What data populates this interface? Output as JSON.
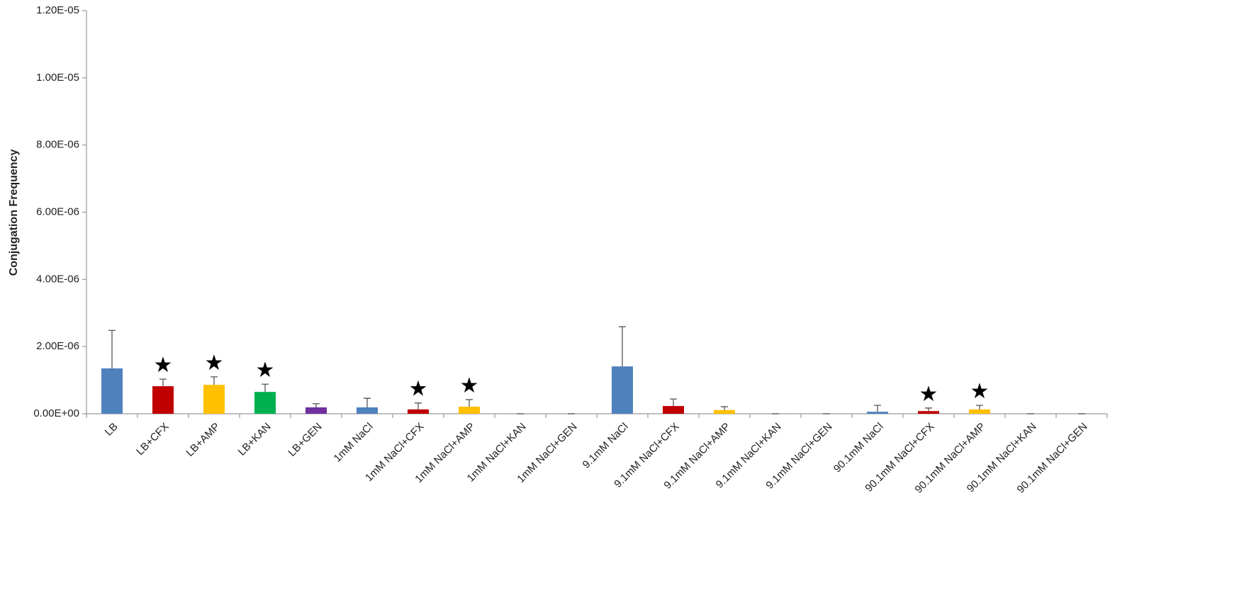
{
  "chart_data": {
    "type": "bar",
    "y_label": "Conjugation Frequency",
    "categories": [
      "LB",
      "LB+CFX",
      "LB+AMP",
      "LB+KAN",
      "LB+GEN",
      "1mM NaCl",
      "1mM NaCl+CFX",
      "1mM NaCl+AMP",
      "1mM NaCl+KAN",
      "1mM NaCl+GEN",
      "9.1mM NaCl",
      "9.1mM NaCl+CFX",
      "9.1mM NaCl+AMP",
      "9.1mM NaCl+KAN",
      "9.1mM NaCl+GEN",
      "90.1mM NaCl",
      "90.1mM NaCl+CFX",
      "90.1mM NaCl+AMP",
      "90.1mM NaCl+KAN",
      "90.1mM NaCl+GEN"
    ],
    "values": [
      1.35e-06,
      8.2e-07,
      8.6e-07,
      6.5e-07,
      1.9e-07,
      1.9e-07,
      1.3e-07,
      2.1e-07,
      0,
      0,
      1.41e-06,
      2.3e-07,
      1.1e-07,
      0,
      0,
      6e-08,
      8e-08,
      1.3e-07,
      0,
      0
    ],
    "errors": [
      1.13e-06,
      2.1e-07,
      2.4e-07,
      2.3e-07,
      1.1e-07,
      2.7e-07,
      1.9e-07,
      2.1e-07,
      0,
      0,
      1.18e-06,
      2.1e-07,
      1e-07,
      0,
      0,
      1.9e-07,
      9e-08,
      1.2e-07,
      0,
      0
    ],
    "colors": [
      "#4f81bd",
      "#c00000",
      "#ffc000",
      "#00b050",
      "#7030a0",
      "#4f81bd",
      "#c00000",
      "#ffc000",
      "#00b050",
      "#7030a0",
      "#4f81bd",
      "#c00000",
      "#ffc000",
      "#00b050",
      "#7030a0",
      "#4f81bd",
      "#c00000",
      "#ffc000",
      "#00b050",
      "#7030a0"
    ],
    "annotations": [
      {
        "category": "LB+CFX",
        "text": "★"
      },
      {
        "category": "LB+AMP",
        "text": "★"
      },
      {
        "category": "LB+KAN",
        "text": "★"
      },
      {
        "category": "1mM NaCl+CFX",
        "text": "★"
      },
      {
        "category": "1mM NaCl+AMP",
        "text": "★"
      },
      {
        "category": "90.1mM NaCl+CFX",
        "text": "★"
      },
      {
        "category": "90.1mM NaCl+AMP",
        "text": "★"
      }
    ],
    "ylim": [
      0,
      1.2e-05
    ],
    "yticks": [
      {
        "value": 0,
        "label": "0.00E+00"
      },
      {
        "value": 2e-06,
        "label": "2.00E-06"
      },
      {
        "value": 4e-06,
        "label": "4.00E-06"
      },
      {
        "value": 6e-06,
        "label": "6.00E-06"
      },
      {
        "value": 8e-06,
        "label": "8.00E-06"
      },
      {
        "value": 1e-05,
        "label": "1.00E-05"
      },
      {
        "value": 1.2e-05,
        "label": "1.20E-05"
      }
    ]
  }
}
